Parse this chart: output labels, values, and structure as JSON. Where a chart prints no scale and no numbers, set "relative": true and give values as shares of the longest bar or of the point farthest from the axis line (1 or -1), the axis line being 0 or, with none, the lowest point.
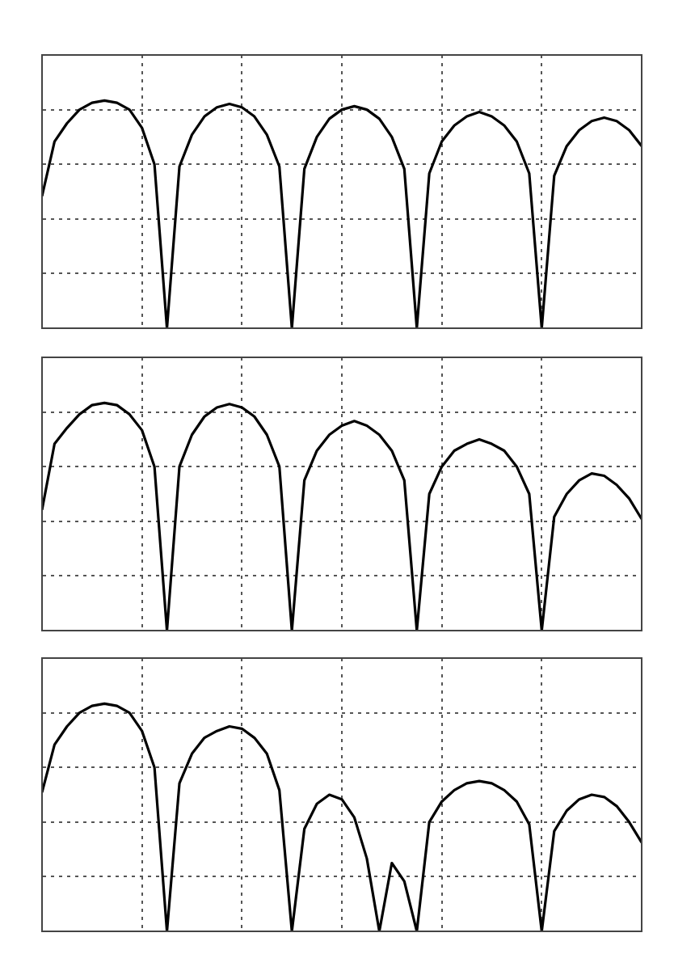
{
  "chart_data": [
    {
      "type": "line",
      "relative": true,
      "grid": true,
      "tick_labels": false,
      "marker": "none",
      "line_style": "solid",
      "legend": false,
      "categories": [
        null,
        null,
        null,
        null,
        null,
        null,
        null,
        null,
        null,
        null,
        null,
        null,
        null,
        null,
        null,
        null,
        null,
        null,
        null,
        null,
        null,
        null,
        null,
        null,
        null,
        null,
        null,
        null,
        null,
        null,
        null,
        null,
        null,
        null,
        null,
        null,
        null,
        null,
        null,
        null,
        null,
        null,
        null,
        null,
        null,
        null,
        null,
        null,
        null
      ],
      "series": [
        {
          "color": "#000000",
          "values": [
            0.58,
            0.82,
            0.9,
            0.96,
            0.99,
            1,
            0.99,
            0.96,
            0.88,
            0.72,
            0,
            0.71,
            0.85,
            0.93,
            0.97,
            0.985,
            0.97,
            0.93,
            0.85,
            0.71,
            0,
            0.7,
            0.84,
            0.92,
            0.96,
            0.975,
            0.96,
            0.92,
            0.84,
            0.7,
            0,
            0.68,
            0.82,
            0.89,
            0.93,
            0.95,
            0.93,
            0.89,
            0.82,
            0.68,
            0,
            0.67,
            0.8,
            0.87,
            0.91,
            0.925,
            0.91,
            0.87,
            0.8
          ]
        }
      ]
    },
    {
      "type": "line",
      "relative": true,
      "grid": true,
      "tick_labels": false,
      "marker": "none",
      "line_style": "solid",
      "legend": false,
      "categories": [
        null,
        null,
        null,
        null,
        null,
        null,
        null,
        null,
        null,
        null,
        null,
        null,
        null,
        null,
        null,
        null,
        null,
        null,
        null,
        null,
        null,
        null,
        null,
        null,
        null,
        null,
        null,
        null,
        null,
        null,
        null,
        null,
        null,
        null,
        null,
        null,
        null,
        null,
        null,
        null,
        null,
        null,
        null,
        null,
        null,
        null,
        null,
        null,
        null
      ],
      "series": [
        {
          "color": "#000000",
          "values": [
            0.53,
            0.82,
            0.89,
            0.95,
            0.99,
            1,
            0.99,
            0.95,
            0.88,
            0.72,
            0,
            0.72,
            0.86,
            0.94,
            0.98,
            0.995,
            0.98,
            0.94,
            0.86,
            0.72,
            0,
            0.66,
            0.79,
            0.86,
            0.9,
            0.92,
            0.9,
            0.86,
            0.79,
            0.66,
            0,
            0.6,
            0.72,
            0.79,
            0.82,
            0.84,
            0.82,
            0.79,
            0.72,
            0.6,
            0,
            0.5,
            0.6,
            0.66,
            0.69,
            0.68,
            0.64,
            0.58,
            0.49
          ]
        }
      ]
    },
    {
      "type": "line",
      "relative": true,
      "grid": true,
      "tick_labels": false,
      "marker": "none",
      "line_style": "solid",
      "legend": false,
      "categories": [
        null,
        null,
        null,
        null,
        null,
        null,
        null,
        null,
        null,
        null,
        null,
        null,
        null,
        null,
        null,
        null,
        null,
        null,
        null,
        null,
        null,
        null,
        null,
        null,
        null,
        null,
        null,
        null,
        null,
        null,
        null,
        null,
        null,
        null,
        null,
        null,
        null,
        null,
        null,
        null,
        null,
        null,
        null,
        null,
        null,
        null,
        null,
        null,
        null
      ],
      "series": [
        {
          "color": "#000000",
          "values": [
            0.61,
            0.82,
            0.9,
            0.96,
            0.99,
            1,
            0.99,
            0.96,
            0.88,
            0.72,
            0,
            0.65,
            0.78,
            0.85,
            0.88,
            0.9,
            0.89,
            0.85,
            0.78,
            0.62,
            0,
            0.45,
            0.56,
            0.6,
            0.58,
            0.5,
            0.32,
            0,
            0.3,
            0.22,
            0,
            0.48,
            0.57,
            0.62,
            0.65,
            0.66,
            0.65,
            0.62,
            0.57,
            0.47,
            0,
            0.44,
            0.53,
            0.58,
            0.6,
            0.59,
            0.55,
            0.48,
            0.39
          ]
        }
      ]
    }
  ]
}
